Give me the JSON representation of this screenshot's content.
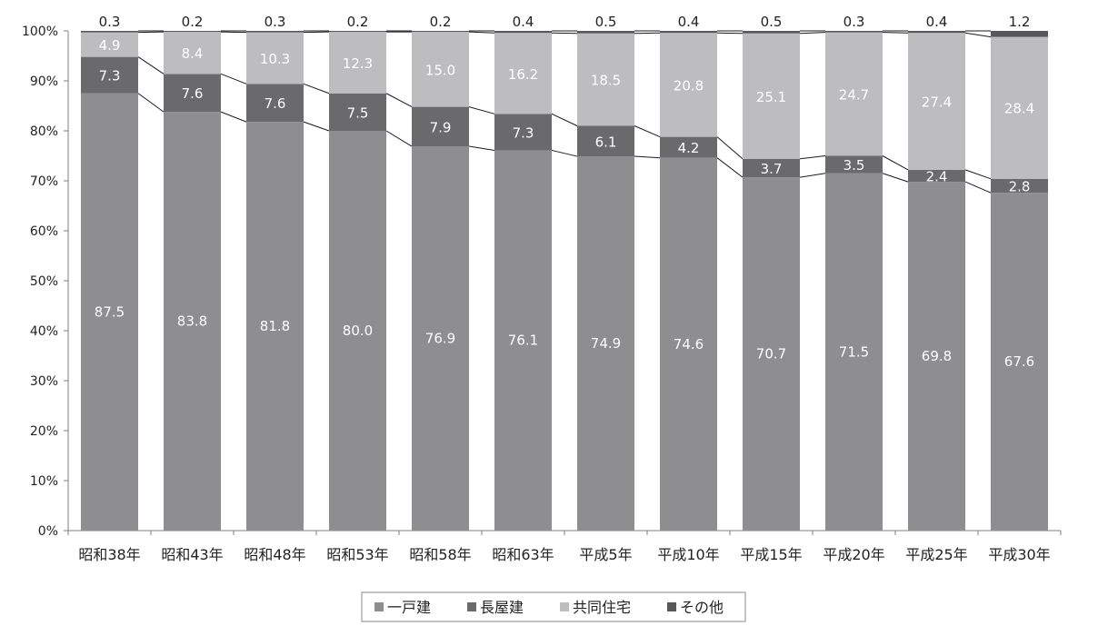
{
  "chart_data": {
    "type": "bar",
    "stacked": true,
    "percent_stacked": true,
    "categories": [
      "昭和38年",
      "昭和43年",
      "昭和48年",
      "昭和53年",
      "昭和58年",
      "昭和63年",
      "平成5年",
      "平成10年",
      "平成15年",
      "平成20年",
      "平成25年",
      "平成30年"
    ],
    "series": [
      {
        "name": "一戸建",
        "values": [
          87.5,
          83.8,
          81.8,
          80.0,
          76.9,
          76.1,
          74.9,
          74.6,
          70.7,
          71.5,
          69.8,
          67.6
        ],
        "color": "#8e8e91"
      },
      {
        "name": "長屋建",
        "values": [
          7.3,
          7.6,
          7.6,
          7.5,
          7.9,
          7.3,
          6.1,
          4.2,
          3.7,
          3.5,
          2.4,
          2.8
        ],
        "color": "#6a6a6d"
      },
      {
        "name": "共同住宅",
        "values": [
          4.9,
          8.4,
          10.3,
          12.3,
          15.0,
          16.2,
          18.5,
          20.8,
          25.1,
          24.7,
          27.4,
          28.4
        ],
        "color": "#bdbdbf"
      },
      {
        "name": "その他",
        "values": [
          0.3,
          0.2,
          0.3,
          0.2,
          0.2,
          0.4,
          0.5,
          0.4,
          0.5,
          0.3,
          0.4,
          1.2
        ],
        "color": "#58585b"
      }
    ],
    "y_ticks": [
      "0%",
      "10%",
      "20%",
      "30%",
      "40%",
      "50%",
      "60%",
      "70%",
      "80%",
      "90%",
      "100%"
    ],
    "ylim": [
      0,
      100
    ],
    "title": "",
    "xlabel": "",
    "ylabel": "",
    "legend_position": "bottom",
    "grid": false,
    "series_lines": true
  }
}
